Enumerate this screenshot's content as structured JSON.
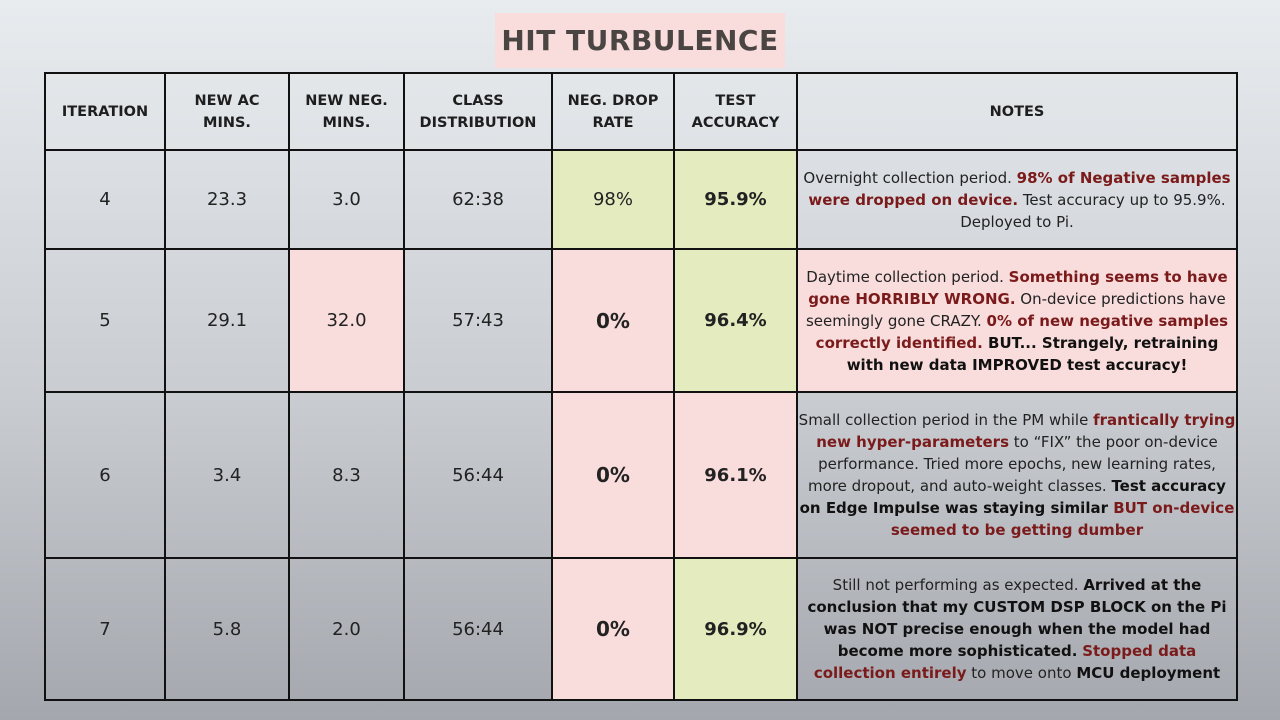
{
  "title": "HIT TURBULENCE",
  "headers": {
    "iteration": "ITERATION",
    "ac_mins": [
      "NEW AC",
      "MINS."
    ],
    "neg_mins": [
      "NEW NEG.",
      "MINS."
    ],
    "class_dist": [
      "CLASS",
      "DISTRIBUTION"
    ],
    "drop_rate": [
      "NEG. DROP",
      "RATE"
    ],
    "test_acc": [
      "TEST",
      "ACCURACY"
    ],
    "notes": "NOTES"
  },
  "rows": [
    {
      "iteration": "4",
      "ac_mins": "23.3",
      "neg_mins": "3.0",
      "class_dist": "62:38",
      "drop_rate": "98%",
      "test_acc": "95.9%",
      "notes": [
        {
          "t": "Overnight collection period. ",
          "s": "n"
        },
        {
          "t": "98% of Negative samples were dropped on device.",
          "s": "red"
        },
        {
          "t": " Test accuracy up to 95.9%. Deployed to Pi.",
          "s": "n"
        }
      ]
    },
    {
      "iteration": "5",
      "ac_mins": "29.1",
      "neg_mins": "32.0",
      "class_dist": "57:43",
      "drop_rate": "0%",
      "test_acc": "96.4%",
      "notes": [
        {
          "t": "Daytime collection period. ",
          "s": "n"
        },
        {
          "t": "Something seems to have gone HORRIBLY WRONG.",
          "s": "red"
        },
        {
          "t": " On-device predictions have seemingly gone CRAZY. ",
          "s": "n"
        },
        {
          "t": "0% of new negative samples correctly identified.",
          "s": "red"
        },
        {
          "t": " BUT... Strangely, retraining with new data IMPROVED test accuracy!",
          "s": "b"
        }
      ]
    },
    {
      "iteration": "6",
      "ac_mins": "3.4",
      "neg_mins": "8.3",
      "class_dist": "56:44",
      "drop_rate": "0%",
      "test_acc": "96.1%",
      "notes": [
        {
          "t": "Small collection period in the PM while ",
          "s": "n"
        },
        {
          "t": "frantically trying new hyper-parameters",
          "s": "red"
        },
        {
          "t": " to “FIX” the poor on-device performance. Tried more epochs, new learning rates, more dropout, and auto-weight classes. ",
          "s": "n"
        },
        {
          "t": "Test accuracy on Edge Impulse was staying similar ",
          "s": "b"
        },
        {
          "t": "BUT on-device seemed to be getting dumber",
          "s": "red"
        }
      ]
    },
    {
      "iteration": "7",
      "ac_mins": "5.8",
      "neg_mins": "2.0",
      "class_dist": "56:44",
      "drop_rate": "0%",
      "test_acc": "96.9%",
      "notes": [
        {
          "t": "Still not performing as expected. ",
          "s": "n"
        },
        {
          "t": "Arrived at the conclusion that my CUSTOM DSP BLOCK on the Pi was NOT precise enough when the model had become more sophisticated.",
          "s": "b"
        },
        {
          "t": " ",
          "s": "n"
        },
        {
          "t": "Stopped data collection entirely",
          "s": "red"
        },
        {
          "t": " to move onto ",
          "s": "n"
        },
        {
          "t": "MCU deployment",
          "s": "b"
        }
      ]
    }
  ],
  "colors": {
    "pink": "#f9dcdc",
    "green": "#e3ebbf",
    "highlight_red": "#7b1a1a"
  }
}
